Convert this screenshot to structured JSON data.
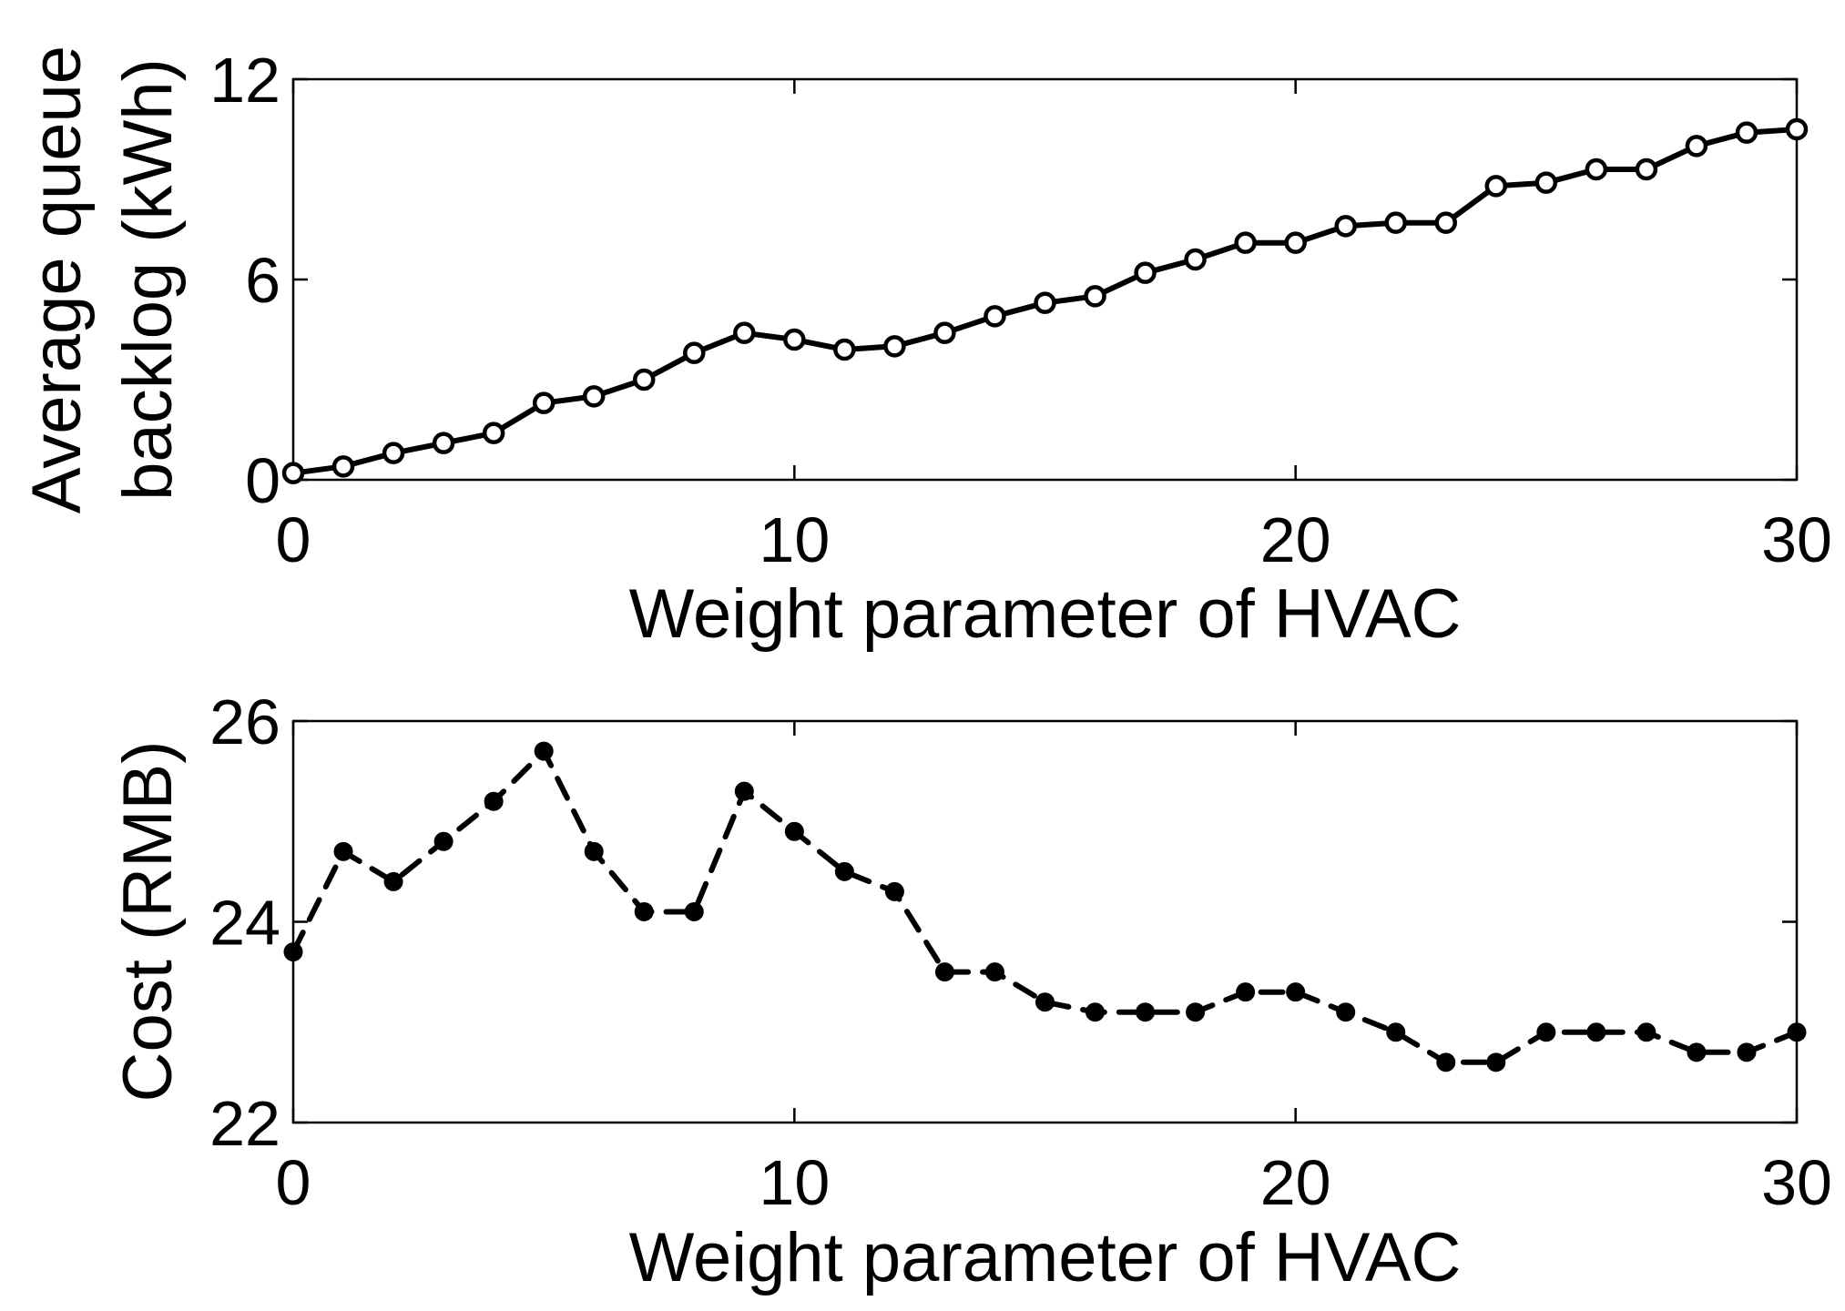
{
  "chart_data": [
    {
      "type": "line",
      "title": "",
      "xlabel": "Weight parameter of HVAC",
      "ylabel_lines": [
        "Average queue",
        "backlog (kWh)"
      ],
      "xlim": [
        0,
        30
      ],
      "ylim": [
        0,
        12
      ],
      "xticks": [
        0,
        10,
        20,
        30
      ],
      "yticks": [
        0,
        6,
        12
      ],
      "grid": false,
      "series": [
        {
          "name": "Average queue backlog",
          "line_style": "solid",
          "marker": "open-circle",
          "color": "#000000",
          "x": [
            0,
            1,
            2,
            3,
            4,
            5,
            6,
            7,
            8,
            9,
            10,
            11,
            12,
            13,
            14,
            15,
            16,
            17,
            18,
            19,
            20,
            21,
            22,
            23,
            24,
            25,
            26,
            27,
            28,
            29,
            30
          ],
          "y": [
            0.2,
            0.4,
            0.8,
            1.1,
            1.4,
            2.3,
            2.5,
            3.0,
            3.8,
            4.4,
            4.2,
            3.9,
            4.0,
            4.4,
            4.9,
            5.3,
            5.5,
            6.2,
            6.6,
            7.1,
            7.1,
            7.6,
            7.7,
            7.7,
            8.8,
            8.9,
            9.3,
            9.3,
            10.0,
            10.4,
            10.5
          ]
        }
      ]
    },
    {
      "type": "line",
      "title": "",
      "xlabel": "Weight parameter of HVAC",
      "ylabel_lines": [
        "Cost (RMB)"
      ],
      "xlim": [
        0,
        30
      ],
      "ylim": [
        22,
        26
      ],
      "xticks": [
        0,
        10,
        20,
        30
      ],
      "yticks": [
        22,
        24,
        26
      ],
      "grid": false,
      "series": [
        {
          "name": "Cost",
          "line_style": "dashed",
          "marker": "filled-circle",
          "color": "#000000",
          "x": [
            0,
            1,
            2,
            3,
            4,
            5,
            6,
            7,
            8,
            9,
            10,
            11,
            12,
            13,
            14,
            15,
            16,
            17,
            18,
            19,
            20,
            21,
            22,
            23,
            24,
            25,
            26,
            27,
            28,
            29,
            30
          ],
          "y": [
            23.7,
            24.7,
            24.4,
            24.8,
            25.2,
            25.7,
            24.7,
            24.1,
            24.1,
            25.3,
            24.9,
            24.5,
            24.3,
            23.5,
            23.5,
            23.2,
            23.1,
            23.1,
            23.1,
            23.3,
            23.3,
            23.1,
            22.9,
            22.6,
            22.6,
            22.9,
            22.9,
            22.9,
            22.7,
            22.7,
            22.9
          ]
        }
      ]
    }
  ]
}
